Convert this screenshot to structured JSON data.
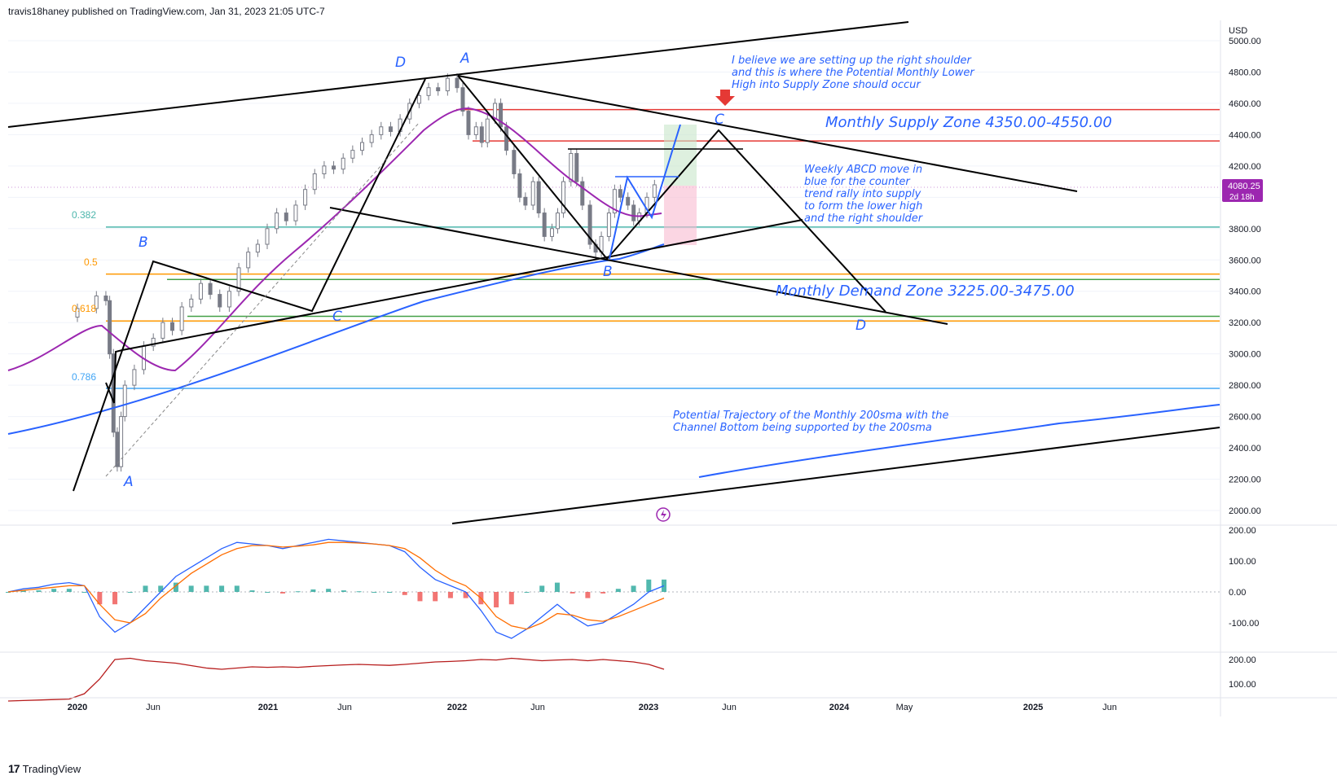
{
  "header": {
    "publisher": "travis18haney published on TradingView.com, Jan 31, 2023 21:05 UTC-7"
  },
  "footer": {
    "brand": "TradingView",
    "logo_icon": "tradingview-logo-icon"
  },
  "colors": {
    "up": "#26a69a",
    "down": "#ef5350",
    "grid": "#f0f3fa",
    "price_line": "#9c27b0",
    "sma200": "#2962ff",
    "sma_mid": "#9c27b0",
    "fib_orange": "#ff9800",
    "fib_teal": "#4db6ac",
    "fib_blue": "#42a5f5",
    "supply": "#e53935",
    "demand": "#43a047"
  },
  "chart_data": {
    "type": "candlestick",
    "currency": "USD",
    "last_price": "4080.25",
    "countdown": "2d 18h",
    "y_ticks": [
      "5000.00",
      "4800.00",
      "4600.00",
      "4400.00",
      "4200.00",
      "4000.00",
      "3800.00",
      "3600.00",
      "3400.00",
      "3200.00",
      "3000.00",
      "2800.00",
      "2600.00",
      "2400.00",
      "2200.00",
      "2000.00"
    ],
    "x_ticks": [
      "2020",
      "Jun",
      "2021",
      "Jun",
      "2022",
      "Jun",
      "2023",
      "Jun",
      "2024",
      "May",
      "2025",
      "Jun"
    ],
    "ohlc_weekly": [
      [
        2020.0,
        3235,
        3290
      ],
      [
        2020.1,
        3290,
        3370
      ],
      [
        2020.15,
        3370,
        3340
      ],
      [
        2020.17,
        3340,
        3000
      ],
      [
        2020.19,
        3000,
        2500
      ],
      [
        2020.21,
        2500,
        2280
      ],
      [
        2020.23,
        2280,
        2600
      ],
      [
        2020.25,
        2600,
        2800
      ],
      [
        2020.3,
        2800,
        2900
      ],
      [
        2020.35,
        2900,
        3050
      ],
      [
        2020.4,
        3050,
        3100
      ],
      [
        2020.45,
        3100,
        3200
      ],
      [
        2020.5,
        3200,
        3150
      ],
      [
        2020.55,
        3150,
        3300
      ],
      [
        2020.6,
        3300,
        3350
      ],
      [
        2020.65,
        3350,
        3450
      ],
      [
        2020.7,
        3450,
        3380
      ],
      [
        2020.75,
        3380,
        3300
      ],
      [
        2020.8,
        3300,
        3400
      ],
      [
        2020.85,
        3400,
        3550
      ],
      [
        2020.9,
        3550,
        3650
      ],
      [
        2020.95,
        3650,
        3700
      ],
      [
        2021.0,
        3700,
        3800
      ],
      [
        2021.05,
        3800,
        3900
      ],
      [
        2021.1,
        3900,
        3850
      ],
      [
        2021.15,
        3850,
        3950
      ],
      [
        2021.2,
        3950,
        4050
      ],
      [
        2021.25,
        4050,
        4150
      ],
      [
        2021.3,
        4150,
        4200
      ],
      [
        2021.35,
        4200,
        4180
      ],
      [
        2021.4,
        4180,
        4250
      ],
      [
        2021.45,
        4250,
        4300
      ],
      [
        2021.5,
        4300,
        4350
      ],
      [
        2021.55,
        4350,
        4400
      ],
      [
        2021.6,
        4400,
        4450
      ],
      [
        2021.65,
        4450,
        4420
      ],
      [
        2021.7,
        4420,
        4500
      ],
      [
        2021.75,
        4500,
        4600
      ],
      [
        2021.8,
        4600,
        4650
      ],
      [
        2021.85,
        4650,
        4700
      ],
      [
        2021.9,
        4700,
        4680
      ],
      [
        2021.95,
        4680,
        4760
      ],
      [
        2022.0,
        4760,
        4700
      ],
      [
        2022.03,
        4700,
        4550
      ],
      [
        2022.06,
        4550,
        4400
      ],
      [
        2022.1,
        4400,
        4450
      ],
      [
        2022.13,
        4450,
        4350
      ],
      [
        2022.16,
        4350,
        4500
      ],
      [
        2022.2,
        4500,
        4600
      ],
      [
        2022.23,
        4600,
        4450
      ],
      [
        2022.26,
        4450,
        4300
      ],
      [
        2022.3,
        4300,
        4150
      ],
      [
        2022.33,
        4150,
        4000
      ],
      [
        2022.36,
        4000,
        3950
      ],
      [
        2022.4,
        3950,
        4100
      ],
      [
        2022.43,
        4100,
        3900
      ],
      [
        2022.46,
        3900,
        3750
      ],
      [
        2022.5,
        3750,
        3800
      ],
      [
        2022.53,
        3800,
        3900
      ],
      [
        2022.56,
        3900,
        4100
      ],
      [
        2022.6,
        4100,
        4280
      ],
      [
        2022.63,
        4280,
        4100
      ],
      [
        2022.66,
        4100,
        3950
      ],
      [
        2022.7,
        3950,
        3700
      ],
      [
        2022.73,
        3700,
        3650
      ],
      [
        2022.76,
        3650,
        3750
      ],
      [
        2022.8,
        3750,
        3900
      ],
      [
        2022.83,
        3900,
        4050
      ],
      [
        2022.86,
        4050,
        4000
      ],
      [
        2022.9,
        4000,
        3950
      ],
      [
        2022.93,
        3950,
        3850
      ],
      [
        2022.96,
        3850,
        3900
      ],
      [
        2023.0,
        3900,
        4000
      ],
      [
        2023.04,
        4000,
        4080
      ]
    ],
    "fib_labels": [
      "0.382",
      "0.5",
      "0.618",
      "0.786"
    ],
    "pattern_labels": {
      "left_A": "A",
      "left_B": "B",
      "left_C": "C",
      "left_D": "D",
      "top_A": "A",
      "mid_B": "B",
      "right_C": "C",
      "right_D": "D"
    },
    "annotations": {
      "shoulder": [
        "I believe we are setting up the right shoulder",
        "and this is where the Potential Monthly Lower",
        "High into Supply Zone should occur"
      ],
      "supply_zone": "Monthly Supply Zone 4350.00-4550.00",
      "weekly_abcd": [
        "Weekly ABCD move in",
        "blue for the counter",
        "trend rally into supply",
        "to form the lower high",
        "and the right shoulder"
      ],
      "demand_zone": "Monthly Demand Zone     3225.00-3475.00",
      "trajectory": [
        "Potential Trajectory of the Monthly 200sma with the",
        "Channel Bottom being supported by the 200sma"
      ]
    },
    "macd": {
      "y_ticks": [
        "200.00",
        "100.00",
        "0.00",
        "-100.00"
      ],
      "macd_line": [
        0,
        10,
        15,
        25,
        30,
        20,
        -80,
        -130,
        -100,
        -50,
        0,
        50,
        80,
        110,
        140,
        160,
        155,
        150,
        140,
        150,
        160,
        170,
        165,
        160,
        155,
        150,
        130,
        80,
        40,
        20,
        0,
        -60,
        -130,
        -150,
        -120,
        -80,
        -40,
        -80,
        -110,
        -100,
        -70,
        -40,
        0,
        20
      ],
      "signal_line": [
        0,
        5,
        10,
        15,
        20,
        20,
        -40,
        -90,
        -100,
        -70,
        -20,
        20,
        60,
        90,
        120,
        140,
        150,
        150,
        145,
        148,
        152,
        160,
        160,
        158,
        155,
        150,
        140,
        110,
        70,
        40,
        20,
        -20,
        -80,
        -110,
        -120,
        -100,
        -70,
        -75,
        -90,
        -95,
        -80,
        -60,
        -40,
        -20
      ],
      "histogram": [
        0,
        5,
        5,
        10,
        10,
        0,
        -40,
        -40,
        0,
        20,
        20,
        30,
        20,
        20,
        20,
        20,
        5,
        0,
        -5,
        2,
        8,
        10,
        5,
        2,
        0,
        0,
        -10,
        -30,
        -30,
        -20,
        -20,
        -40,
        -50,
        -40,
        0,
        20,
        30,
        -5,
        -20,
        -5,
        10,
        20,
        40,
        40
      ]
    },
    "lower_pane": {
      "y_ticks": [
        "200.00",
        "100.00"
      ],
      "values": [
        30,
        32,
        34,
        36,
        38,
        60,
        120,
        200,
        205,
        195,
        190,
        185,
        175,
        165,
        160,
        165,
        170,
        168,
        170,
        168,
        172,
        175,
        178,
        180,
        178,
        176,
        180,
        185,
        190,
        192,
        195,
        200,
        198,
        205,
        200,
        195,
        198,
        200,
        195,
        200,
        195,
        190,
        180,
        160
      ]
    }
  }
}
